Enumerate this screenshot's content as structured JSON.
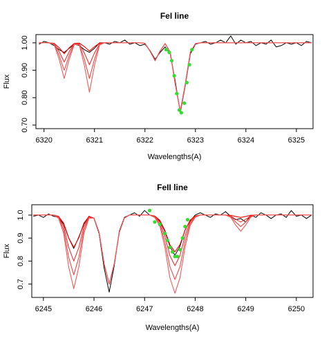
{
  "chart_data": [
    {
      "type": "line",
      "title": "FeI line",
      "xlabel": "Wavelengths(A)",
      "ylabel": "Flux",
      "xlim": [
        6319.84,
        6325.33
      ],
      "ylim": [
        0.687,
        1.03
      ],
      "xticks": [
        6320,
        6321,
        6322,
        6323,
        6324,
        6325
      ],
      "yticks": [
        {
          "value": 0.7,
          "label": "0.70"
        },
        {
          "value": 0.8,
          "label": "0.80"
        },
        {
          "value": 0.9,
          "label": "0.90"
        },
        {
          "value": 1,
          "label": "1.00"
        }
      ],
      "x": [
        6319.9,
        6320.0,
        6320.1,
        6320.2,
        6320.3,
        6320.4,
        6320.5,
        6320.6,
        6320.7,
        6320.8,
        6320.9,
        6321.0,
        6321.1,
        6321.2,
        6321.3,
        6321.4,
        6321.5,
        6321.6,
        6321.7,
        6321.8,
        6321.9,
        6322.0,
        6322.1,
        6322.2,
        6322.3,
        6322.4,
        6322.5,
        6322.6,
        6322.7,
        6322.8,
        6322.9,
        6323.0,
        6323.1,
        6323.2,
        6323.3,
        6323.4,
        6323.5,
        6323.6,
        6323.7,
        6323.8,
        6323.9,
        6324.0,
        6324.1,
        6324.2,
        6324.3,
        6324.4,
        6324.5,
        6324.6,
        6324.7,
        6324.8,
        6324.9,
        6325.0,
        6325.1,
        6325.2,
        6325.3
      ],
      "series": [
        {
          "color": "#000000",
          "values": [
            0.995,
            1.005,
            1.0,
            0.99,
            0.975,
            0.965,
            0.98,
            0.995,
            0.99,
            0.975,
            0.965,
            0.98,
            1.0,
            1.0,
            0.995,
            1.005,
            1.0,
            1.01,
            0.995,
            1.0,
            0.99,
            0.995,
            0.972,
            0.94,
            0.965,
            0.985,
            0.96,
            0.86,
            0.745,
            0.845,
            0.96,
            0.995,
            1.0,
            1.005,
            0.995,
            1.0,
            1.01,
            1.0,
            1.025,
            0.995,
            1.01,
            1.0,
            1.005,
            0.99,
            1.0,
            0.995,
            1.01,
            0.985,
            0.99,
            1.0,
            0.995,
            1.0,
            0.99,
            1.005,
            1.0
          ]
        },
        {
          "color": "#ff0000",
          "values": [
            1,
            1,
            1,
            0.998,
            0.982,
            0.96,
            0.982,
            0.998,
            0.999,
            0.986,
            0.97,
            0.986,
            0.999,
            1,
            1,
            1,
            1,
            1,
            1,
            1,
            1,
            0.998,
            0.97,
            0.935,
            0.97,
            0.997,
            0.966,
            0.85,
            0.75,
            0.85,
            0.966,
            0.997,
            1,
            1,
            1,
            1,
            1,
            1,
            1,
            1,
            1,
            1,
            1,
            1,
            1,
            1,
            1,
            1,
            1,
            1,
            1,
            1,
            1,
            1,
            1
          ]
        },
        {
          "color": "#f03030",
          "values": [
            1,
            1,
            1,
            0.997,
            0.968,
            0.93,
            0.968,
            0.997,
            0.996,
            0.963,
            0.92,
            0.963,
            0.996,
            1,
            1,
            1,
            1,
            1,
            1,
            1,
            1,
            0.998,
            0.97,
            0.935,
            0.97,
            0.997,
            0.966,
            0.85,
            0.75,
            0.85,
            0.966,
            0.997,
            1,
            1,
            1,
            1,
            1,
            1,
            1,
            1,
            1,
            1,
            1,
            1,
            1,
            1,
            1,
            1,
            1,
            1,
            1,
            1,
            1,
            1,
            1
          ]
        },
        {
          "color": "#f04848",
          "values": [
            1,
            1,
            1,
            0.996,
            0.954,
            0.9,
            0.954,
            0.996,
            0.994,
            0.94,
            0.87,
            0.94,
            0.994,
            1,
            1,
            1,
            1,
            1,
            1,
            1,
            1,
            0.998,
            0.97,
            0.935,
            0.97,
            0.997,
            0.966,
            0.85,
            0.75,
            0.85,
            0.966,
            0.997,
            1,
            1,
            1,
            1,
            1,
            1,
            1,
            1,
            1,
            1,
            1,
            1,
            1,
            1,
            1,
            1,
            1,
            1,
            1,
            1,
            1,
            1,
            1
          ]
        },
        {
          "color": "#ee5a5a",
          "values": [
            1,
            1,
            1,
            0.994,
            0.94,
            0.87,
            0.94,
            0.994,
            0.992,
            0.917,
            0.82,
            0.917,
            0.992,
            1,
            1,
            1,
            1,
            1,
            1,
            1,
            1,
            0.998,
            0.97,
            0.935,
            0.97,
            0.997,
            0.966,
            0.85,
            0.75,
            0.85,
            0.966,
            0.997,
            1,
            1,
            1,
            1,
            1,
            1,
            1,
            1,
            1,
            1,
            1,
            1,
            1,
            1,
            1,
            1,
            1,
            1,
            1,
            1,
            1,
            1,
            1
          ]
        },
        {
          "type": "scatter",
          "color": "#33dd33",
          "x": [
            6322.42,
            6322.48,
            6322.53,
            6322.58,
            6322.63,
            6322.68,
            6322.72,
            6322.78,
            6322.83,
            6322.88,
            6322.93
          ],
          "values": [
            0.975,
            0.965,
            0.935,
            0.88,
            0.815,
            0.755,
            0.745,
            0.78,
            0.855,
            0.92,
            0.975
          ]
        }
      ]
    },
    {
      "type": "line",
      "title": "FeII line",
      "xlabel": "Wavelengths(A)",
      "ylabel": "Flux",
      "xlim": [
        6244.77,
        6250.33
      ],
      "ylim": [
        0.642,
        1.045
      ],
      "xticks": [
        6245,
        6246,
        6247,
        6248,
        6249,
        6250
      ],
      "yticks": [
        0.7,
        0.8,
        0.9,
        {
          "value": 1,
          "label": "1.0"
        }
      ],
      "x": [
        6244.8,
        6244.9,
        6245.0,
        6245.1,
        6245.2,
        6245.3,
        6245.4,
        6245.5,
        6245.6,
        6245.7,
        6245.8,
        6245.9,
        6246.0,
        6246.1,
        6246.2,
        6246.3,
        6246.4,
        6246.5,
        6246.6,
        6246.7,
        6246.8,
        6246.9,
        6247.0,
        6247.1,
        6247.2,
        6247.3,
        6247.4,
        6247.5,
        6247.6,
        6247.7,
        6247.8,
        6247.9,
        6248.0,
        6248.1,
        6248.2,
        6248.3,
        6248.4,
        6248.5,
        6248.6,
        6248.7,
        6248.8,
        6248.9,
        6249.0,
        6249.1,
        6249.2,
        6249.3,
        6249.4,
        6249.5,
        6249.6,
        6249.7,
        6249.8,
        6249.9,
        6250.0,
        6250.1,
        6250.2,
        6250.3
      ],
      "series": [
        {
          "color": "#000000",
          "values": [
            0.995,
            1.0,
            0.99,
            1.005,
            0.995,
            0.99,
            0.96,
            0.9,
            0.855,
            0.905,
            0.96,
            0.995,
            0.985,
            0.92,
            0.77,
            0.665,
            0.78,
            0.93,
            0.99,
            1.0,
            1.01,
            0.995,
            1.02,
            1.0,
            0.99,
            0.975,
            0.93,
            0.865,
            0.825,
            0.865,
            0.935,
            0.975,
            1.0,
            1.01,
            1.0,
            0.99,
            1.005,
            1.0,
            1.015,
            0.995,
            0.98,
            0.985,
            0.97,
            1.0,
            0.99,
            1.01,
            1.0,
            0.985,
            1.0,
            1.005,
            0.99,
            1.02,
            0.995,
            1.0,
            0.985,
            1.0
          ]
        },
        {
          "color": "#ff0000",
          "values": [
            1,
            1,
            1,
            1,
            1,
            0.994,
            0.965,
            0.901,
            0.86,
            0.901,
            0.965,
            0.994,
            0.987,
            0.925,
            0.788,
            0.7,
            0.788,
            0.925,
            0.987,
            1,
            1,
            1,
            1,
            1,
            0.996,
            0.978,
            0.934,
            0.872,
            0.84,
            0.872,
            0.934,
            0.978,
            0.996,
            1,
            1,
            1,
            1,
            1,
            1,
            0.999,
            0.994,
            0.99,
            0.994,
            0.999,
            1,
            1,
            1,
            1,
            1,
            1,
            1,
            1,
            1,
            1,
            1,
            1
          ]
        },
        {
          "color": "#f03030",
          "values": [
            1,
            1,
            1,
            1,
            1,
            0.991,
            0.95,
            0.859,
            0.8,
            0.859,
            0.95,
            0.991,
            0.987,
            0.925,
            0.788,
            0.7,
            0.788,
            0.925,
            0.987,
            1,
            1,
            1,
            1,
            1,
            0.994,
            0.97,
            0.91,
            0.824,
            0.78,
            0.824,
            0.91,
            0.97,
            0.994,
            1,
            1,
            1,
            1,
            1,
            1,
            0.996,
            0.982,
            0.97,
            0.982,
            0.996,
            1,
            1,
            1,
            1,
            1,
            1,
            1,
            1,
            1,
            1,
            1,
            1
          ]
        },
        {
          "color": "#f04848",
          "values": [
            1,
            1,
            1,
            1,
            1,
            0.989,
            0.935,
            0.816,
            0.74,
            0.816,
            0.935,
            0.989,
            0.987,
            0.925,
            0.788,
            0.7,
            0.788,
            0.925,
            0.987,
            1,
            1,
            1,
            1,
            1,
            0.992,
            0.962,
            0.885,
            0.776,
            0.72,
            0.776,
            0.885,
            0.962,
            0.992,
            1,
            1,
            1,
            1,
            1,
            1,
            0.993,
            0.97,
            0.95,
            0.97,
            0.993,
            1,
            1,
            1,
            1,
            1,
            1,
            1,
            1,
            1,
            1,
            1,
            1
          ]
        },
        {
          "color": "#ee5a5a",
          "values": [
            1,
            1,
            1,
            1,
            1,
            0.986,
            0.92,
            0.774,
            0.68,
            0.774,
            0.92,
            0.986,
            0.987,
            0.925,
            0.788,
            0.7,
            0.788,
            0.925,
            0.987,
            1,
            1,
            1,
            1,
            1,
            0.99,
            0.954,
            0.861,
            0.728,
            0.66,
            0.728,
            0.861,
            0.954,
            0.99,
            1,
            1,
            1,
            1,
            1,
            1,
            0.991,
            0.957,
            0.93,
            0.957,
            0.991,
            1,
            1,
            1,
            1,
            1,
            1,
            1,
            1,
            1,
            1,
            1,
            1
          ]
        },
        {
          "type": "scatter",
          "color": "#33dd33",
          "x": [
            6247.1,
            6247.2,
            6247.3,
            6247.4,
            6247.45,
            6247.5,
            6247.55,
            6247.6,
            6247.65,
            6247.7,
            6247.75,
            6247.8,
            6247.85
          ],
          "values": [
            1.02,
            0.97,
            0.96,
            0.92,
            0.89,
            0.86,
            0.84,
            0.82,
            0.82,
            0.85,
            0.9,
            0.95,
            0.98
          ]
        }
      ]
    }
  ]
}
